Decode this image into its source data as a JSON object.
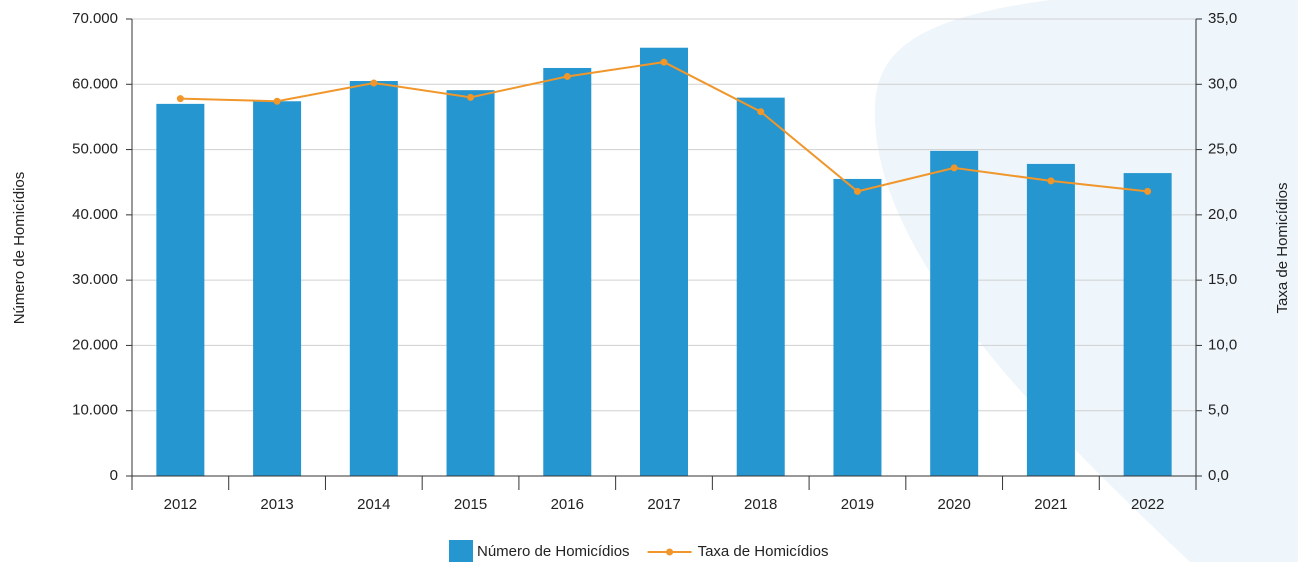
{
  "chart_data": {
    "type": "bar_line",
    "categories": [
      "2012",
      "2013",
      "2014",
      "2015",
      "2016",
      "2017",
      "2018",
      "2019",
      "2020",
      "2021",
      "2022"
    ],
    "series": [
      {
        "name": "Número de Homicídios",
        "color": "#2596cf",
        "type": "bar",
        "values": [
          57000,
          57400,
          60500,
          59100,
          62500,
          65600,
          57956,
          45500,
          49800,
          47800,
          46400
        ]
      },
      {
        "name": "Taxa de Homicídios",
        "color": "#f0962a",
        "type": "line",
        "axis": "y2",
        "values": [
          28.9,
          28.7,
          30.1,
          29.0,
          30.6,
          31.7,
          27.9,
          21.8,
          23.6,
          22.6,
          21.8
        ]
      }
    ],
    "ylabel": "Número de Homicídios",
    "y2label": "Taxa de Homicídios",
    "ylim": [
      0,
      70000
    ],
    "yticks": [
      0,
      {
        "value": 10000,
        "label": "10.000"
      },
      {
        "value": 20000,
        "label": "20.000"
      },
      {
        "value": 30000,
        "label": "30.000"
      },
      {
        "value": 40000,
        "label": "40.000"
      },
      {
        "value": 50000,
        "label": "50.000"
      },
      {
        "value": 60000,
        "label": "60.000"
      },
      {
        "value": 70000,
        "label": "70.000"
      }
    ],
    "y2lim": [
      0,
      35
    ],
    "y2ticks": [
      {
        "value": 0,
        "label": "0,0"
      },
      {
        "value": 5,
        "label": "5,0"
      },
      {
        "value": 10,
        "label": "10,0"
      },
      {
        "value": 15,
        "label": "15,0"
      },
      {
        "value": 20,
        "label": "20,0"
      },
      {
        "value": 25,
        "label": "25,0"
      },
      {
        "value": 30,
        "label": "30,0"
      },
      {
        "value": 35,
        "label": "35,0"
      }
    ],
    "grid": true,
    "legend": "bottom"
  }
}
